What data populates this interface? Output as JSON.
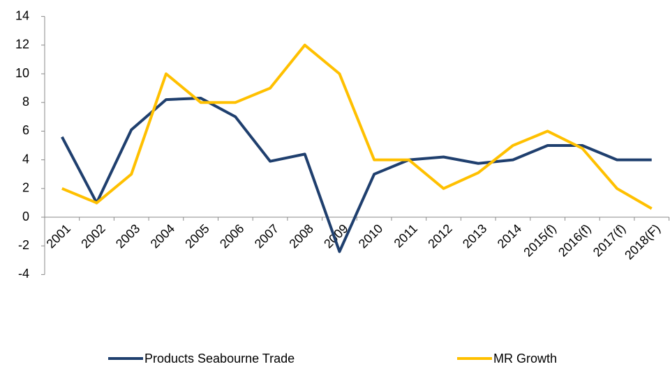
{
  "chart_data": {
    "type": "line",
    "categories": [
      "2001",
      "2002",
      "2003",
      "2004",
      "2005",
      "2006",
      "2007",
      "2008",
      "2009",
      "2010",
      "2011",
      "2012",
      "2013",
      "2014",
      "2015(f)",
      "2016(f)",
      "2017(f)",
      "2018(F)"
    ],
    "series": [
      {
        "name": "Products Seabourne Trade",
        "color": "#1f3f6e",
        "values": [
          5.6,
          1.0,
          6.1,
          8.2,
          8.3,
          7.0,
          3.9,
          4.4,
          -2.4,
          3.0,
          4.0,
          4.2,
          3.75,
          4.0,
          5.0,
          5.0,
          4.0,
          4.0
        ]
      },
      {
        "name": "MR Growth",
        "color": "#ffc000",
        "values": [
          2,
          1,
          3,
          10,
          8,
          8,
          9,
          12,
          10,
          4,
          4,
          2,
          3.1,
          5,
          6,
          4.8,
          2,
          0.6
        ]
      }
    ],
    "ylim": [
      -4,
      14
    ],
    "yticks": [
      -4,
      -2,
      0,
      2,
      4,
      6,
      8,
      10,
      12,
      14
    ],
    "legend": "bottom"
  }
}
